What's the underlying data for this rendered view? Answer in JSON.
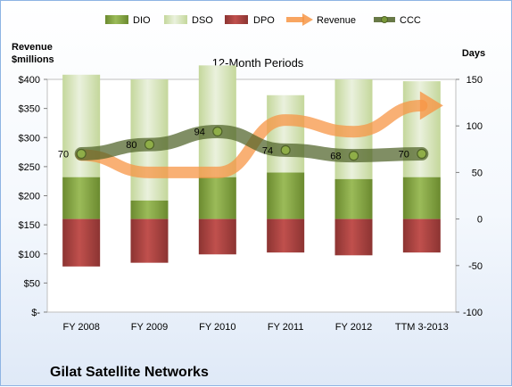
{
  "chart_data": {
    "type": "bar",
    "title": "12-Month Periods",
    "company": "Gilat Satellite Networks",
    "left_axis_label": [
      "Revenue",
      "$millions"
    ],
    "right_axis_label": "Days",
    "categories": [
      "FY 2008",
      "FY 2009",
      "FY 2010",
      "FY 2011",
      "FY 2012",
      "TTM 3-2013"
    ],
    "left_ticks": [
      "$-",
      "$50",
      "$100",
      "$150",
      "$200",
      "$250",
      "$300",
      "$350",
      "$400"
    ],
    "right_ticks": [
      "-100",
      "-50",
      "0",
      "50",
      "100",
      "150"
    ],
    "left_ylim": [
      0,
      400
    ],
    "right_ylim": [
      -100,
      150
    ],
    "legend": [
      "DIO",
      "DSO",
      "DPO",
      "Revenue",
      "CCC"
    ],
    "legend_position": "top",
    "grid": false,
    "series": [
      {
        "name": "DIO",
        "axis": "right",
        "values": [
          45,
          20,
          45,
          50,
          43,
          45
        ]
      },
      {
        "name": "DSO",
        "axis": "right",
        "values": [
          110,
          130,
          120,
          83,
          107,
          103
        ]
      },
      {
        "name": "DPO",
        "axis": "right",
        "values": [
          -51,
          -47,
          -38,
          -36,
          -39,
          -36
        ]
      },
      {
        "name": "Revenue",
        "axis": "left",
        "values": [
          270,
          240,
          240,
          330,
          310,
          355
        ]
      },
      {
        "name": "CCC",
        "axis": "right",
        "values": [
          70,
          80,
          94,
          74,
          68,
          70
        ]
      }
    ],
    "data_labels": [
      "70",
      "80",
      "94",
      "74",
      "68",
      "70"
    ],
    "colors": {
      "DIO": "#77933c",
      "DSO": "#d7e4bd",
      "DPO": "#953735",
      "Revenue": "#f79646",
      "CCC": "#4f6228"
    }
  }
}
